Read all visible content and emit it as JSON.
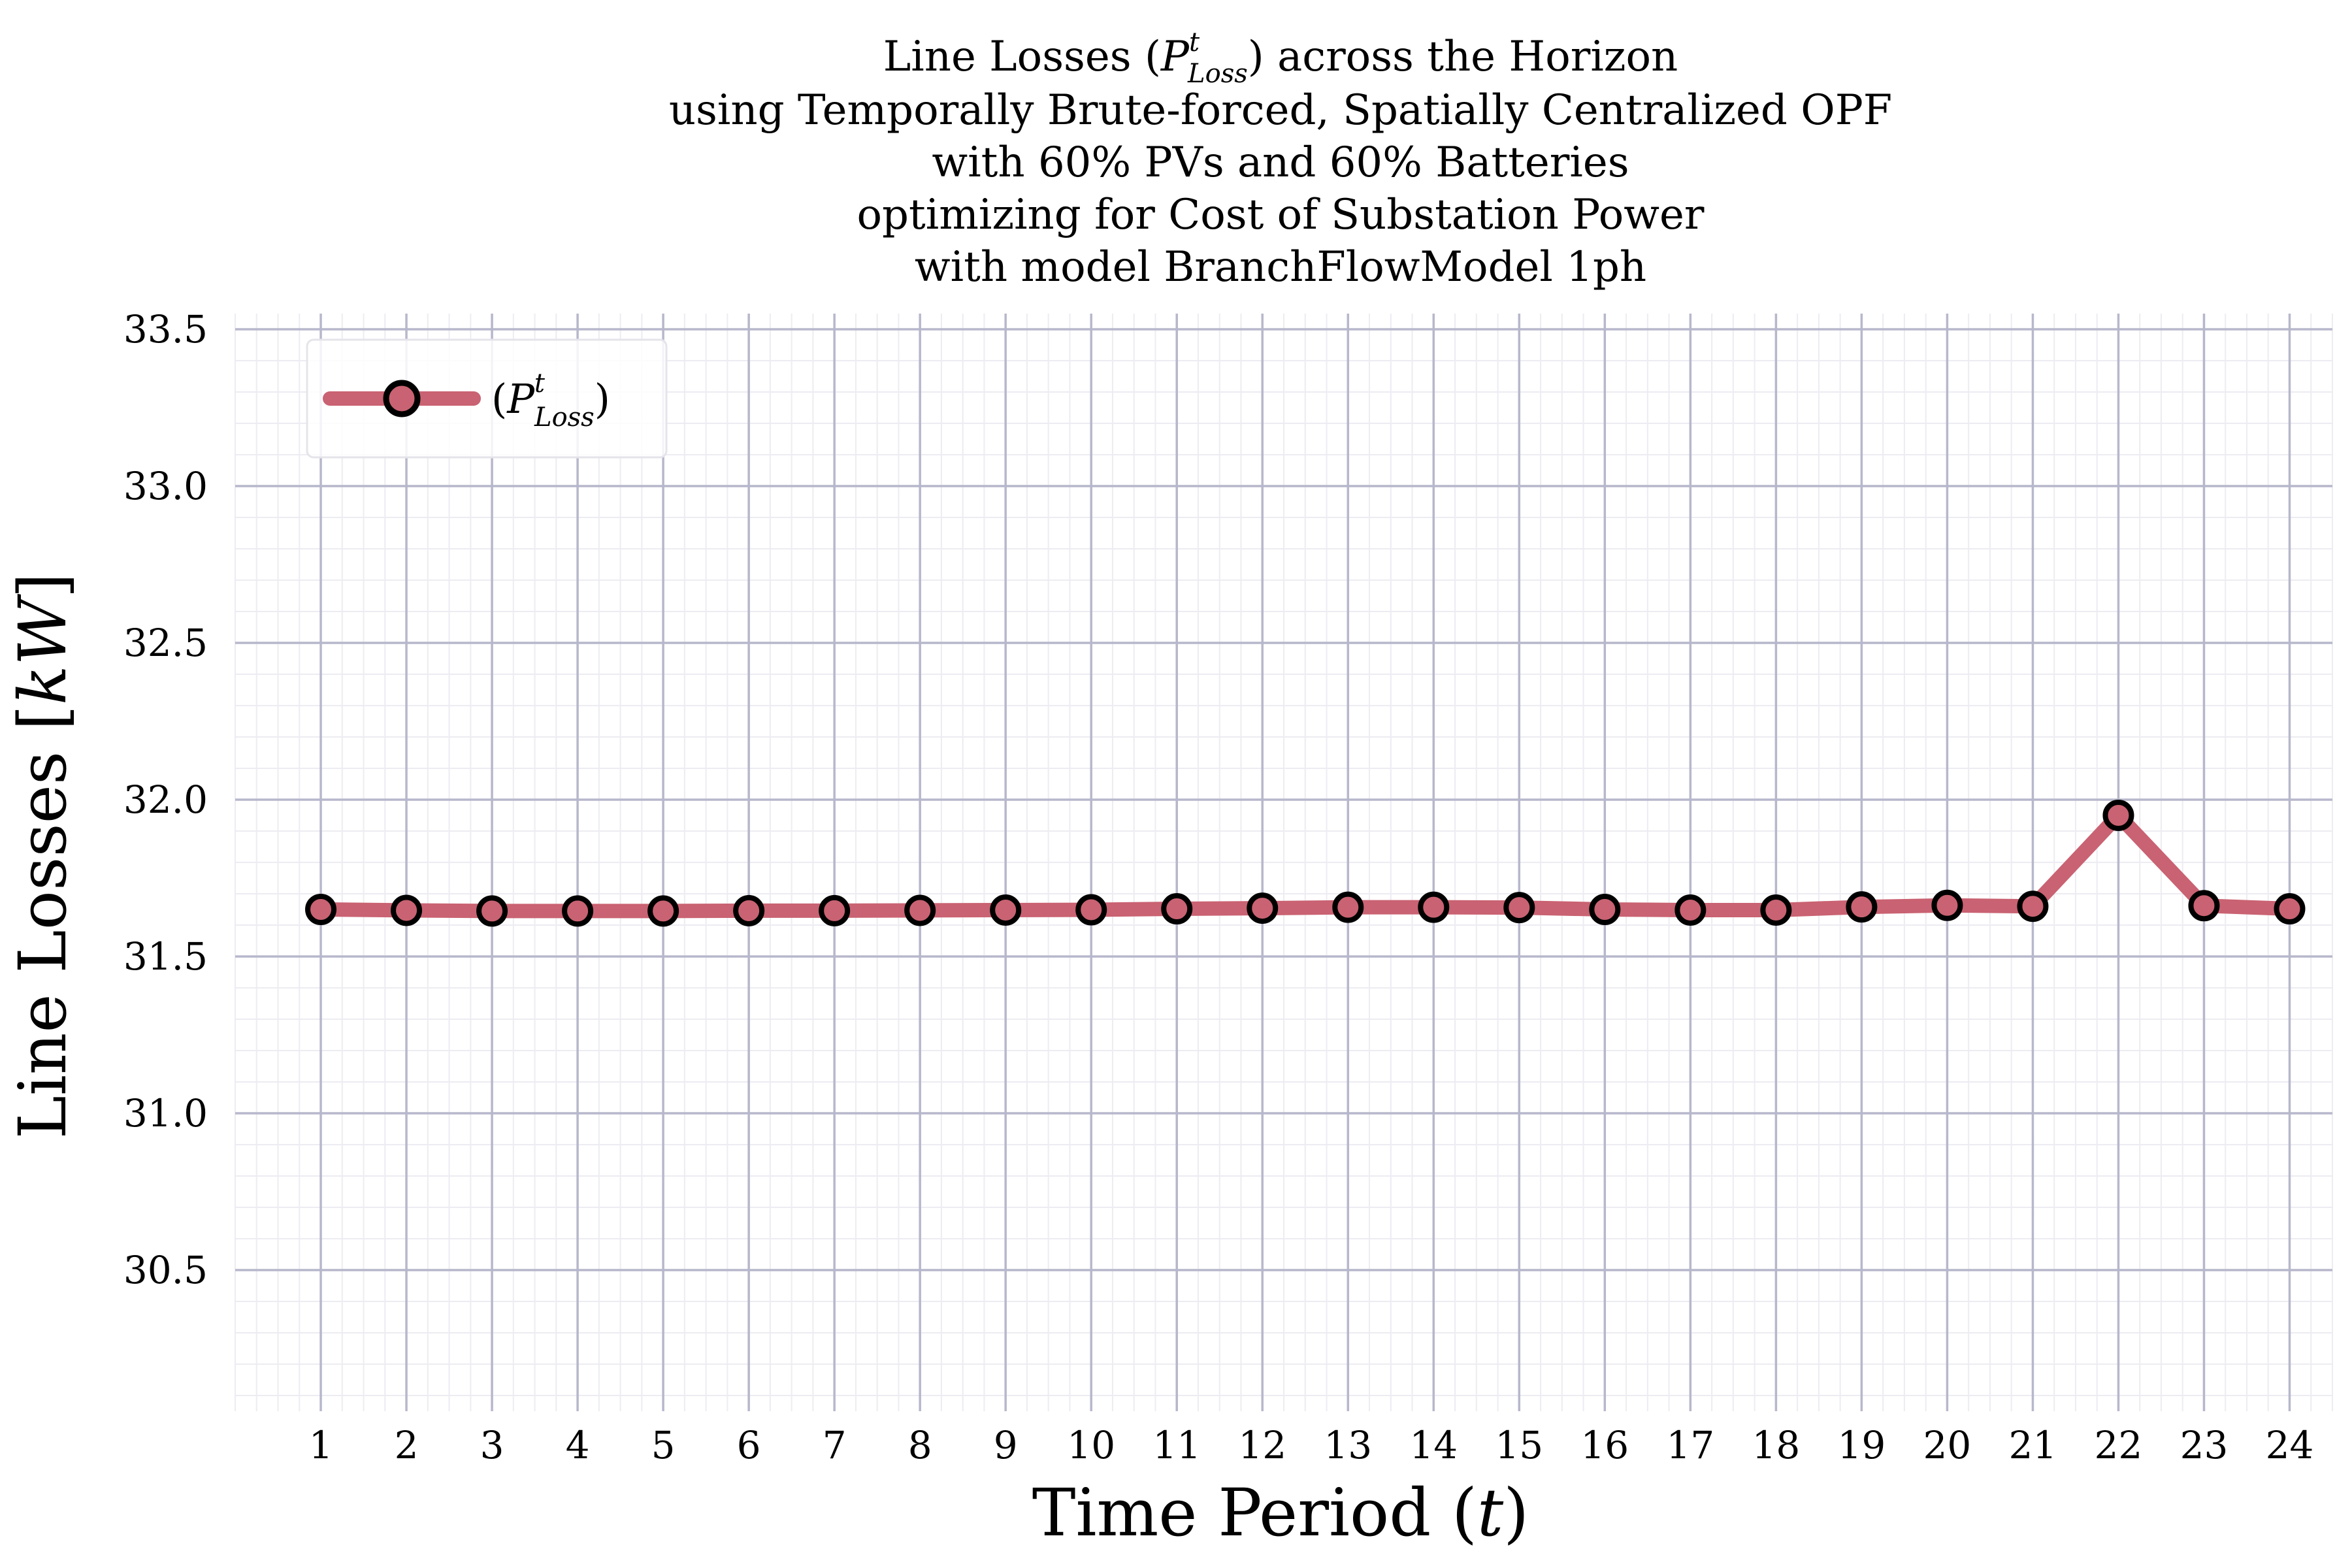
{
  "chart_data": {
    "type": "line",
    "title_lines": [
      {
        "pre": "Line Losses (",
        "sym": "P",
        "sup": "t",
        "sub": "Loss",
        "post": ") across the Horizon"
      },
      {
        "text": "using Temporally Brute-forced, Spatially Centralized OPF"
      },
      {
        "text": "with 60% PVs and 60% Batteries"
      },
      {
        "text": "optimizing for Cost of Substation Power"
      },
      {
        "text": "with model BranchFlowModel 1ph"
      }
    ],
    "xlabel": {
      "pre": "Time Period (",
      "var": "t",
      "post": ")"
    },
    "ylabel": {
      "pre": "Line Losses [",
      "var": "kW",
      "post": "]"
    },
    "x": [
      1,
      2,
      3,
      4,
      5,
      6,
      7,
      8,
      9,
      10,
      11,
      12,
      13,
      14,
      15,
      16,
      17,
      18,
      19,
      20,
      21,
      22,
      23,
      24
    ],
    "series": [
      {
        "name": {
          "pre": "(",
          "sym": "P",
          "sup": "t",
          "sub": "Loss",
          "post": ")"
        },
        "color": "#c96272",
        "marker": "circle",
        "marker_edge": "#000000",
        "values": [
          31.65,
          31.647,
          31.645,
          31.645,
          31.645,
          31.646,
          31.646,
          31.647,
          31.648,
          31.649,
          31.652,
          31.654,
          31.657,
          31.657,
          31.656,
          31.65,
          31.648,
          31.648,
          31.658,
          31.663,
          31.66,
          31.95,
          31.662,
          31.652
        ]
      }
    ],
    "xlim": [
      0,
      24.5
    ],
    "ylim": [
      30.05,
      33.55
    ],
    "yticks": [
      30.5,
      31.0,
      31.5,
      32.0,
      32.5,
      33.0,
      33.5
    ],
    "ytick_labels": [
      "30.5",
      "31.0",
      "31.5",
      "32.0",
      "32.5",
      "33.0",
      "33.5"
    ],
    "grid": true,
    "minor_grid": true,
    "legend": "top-left",
    "colors": {
      "major_grid": "#b7b7cc",
      "minor_grid": "#ececf2",
      "line": "#c96272"
    }
  }
}
